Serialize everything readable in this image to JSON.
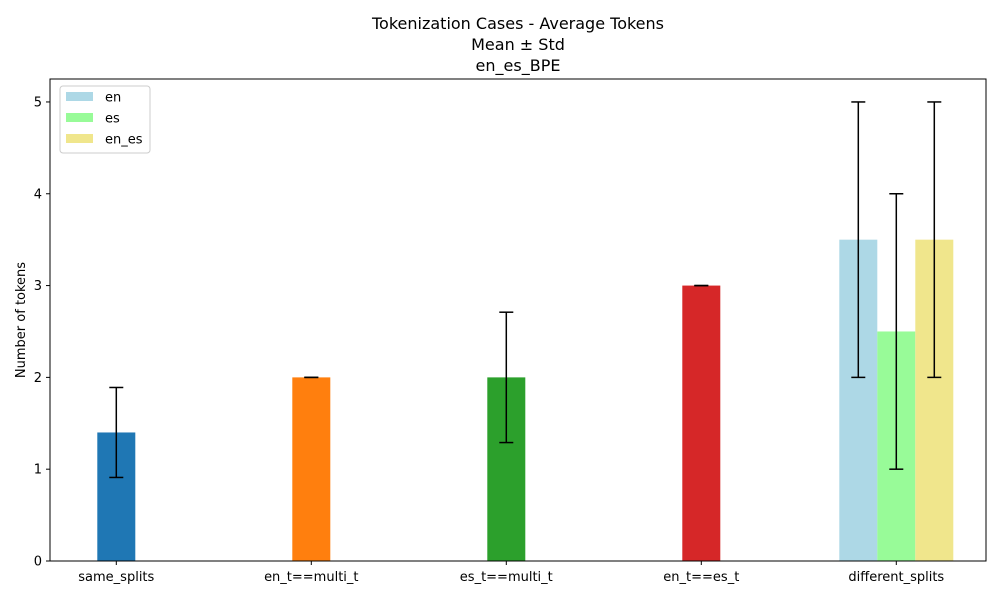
{
  "chart_data": {
    "type": "bar",
    "title_lines": [
      "Tokenization Cases - Average Tokens",
      "Mean ± Std",
      "en_es_BPE"
    ],
    "xlabel": "",
    "ylabel": "Number of tokens",
    "ylim": [
      0,
      5.25
    ],
    "yticks": [
      0,
      1,
      2,
      3,
      4,
      5
    ],
    "categories": [
      "same_splits",
      "en_t==multi_t",
      "es_t==multi_t",
      "en_t==es_t",
      "different_splits"
    ],
    "bars": [
      {
        "category": "same_splits",
        "mean": 1.4,
        "std": 0.49,
        "color": "#1f77b4"
      },
      {
        "category": "en_t==multi_t",
        "mean": 2.0,
        "std": 0.0,
        "color": "#ff7f0e"
      },
      {
        "category": "es_t==multi_t",
        "mean": 2.0,
        "std": 0.71,
        "color": "#2ca02c"
      },
      {
        "category": "en_t==es_t",
        "mean": 3.0,
        "std": 0.0,
        "color": "#d62728"
      }
    ],
    "grouped": {
      "category": "different_splits",
      "series": [
        {
          "name": "en",
          "mean": 3.5,
          "std": 1.5,
          "color": "#add8e6"
        },
        {
          "name": "es",
          "mean": 2.5,
          "std": 1.5,
          "color": "#98fb98"
        },
        {
          "name": "en_es",
          "mean": 3.5,
          "std": 1.5,
          "color": "#f0e68c"
        }
      ]
    },
    "legend": {
      "placement": "top-left",
      "entries": [
        "en",
        "es",
        "en_es"
      ]
    },
    "grid": false
  }
}
